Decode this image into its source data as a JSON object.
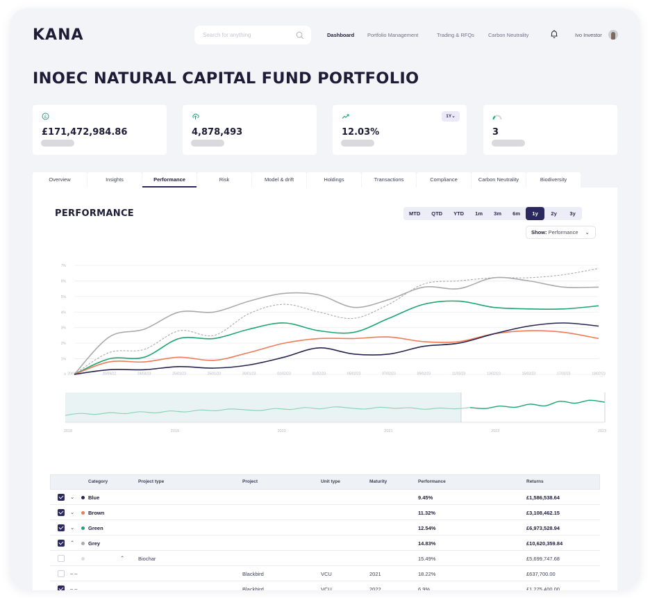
{
  "app": {
    "logo": "KANA"
  },
  "header": {
    "search_placeholder": "Search for anything",
    "nav": [
      "Dashboard",
      "Portfolio Management",
      "Trading & RFQs",
      "Carbon Neutrality"
    ],
    "active_nav": "Dashboard",
    "user_name": "Ivo Investor"
  },
  "page": {
    "title": "INOEC NATURAL CAPITAL FUND PORTFOLIO"
  },
  "kpis": [
    {
      "icon": "pound-circle-icon",
      "value": "£171,472,984.86"
    },
    {
      "icon": "cloud-upload-icon",
      "value": "4,878,493"
    },
    {
      "icon": "trend-up-icon",
      "value": "12.03%",
      "badge": "1Y"
    },
    {
      "icon": "gauge-icon",
      "value": "3"
    }
  ],
  "tabs": [
    "Overview",
    "Insights",
    "Performance",
    "Risk",
    "Model & drift",
    "Holdings",
    "Transactions",
    "Compliance",
    "Carbon Neutrality",
    "Biodiversity"
  ],
  "active_tab": "Performance",
  "performance": {
    "title": "PERFORMANCE",
    "ranges": [
      "MTD",
      "QTD",
      "YTD",
      "1m",
      "3m",
      "6m",
      "1y",
      "2y",
      "3y"
    ],
    "active_range": "1y",
    "show_label": "Show:",
    "show_value": "Performance"
  },
  "chart_data": {
    "type": "line",
    "ylim": [
      0,
      7
    ],
    "y_ticks": [
      "0",
      "1%",
      "2%",
      "3%",
      "4%",
      "5%",
      "6%",
      "7%"
    ],
    "x": [
      "20/01/23",
      "20/09/22",
      "24/03/23",
      "25/01/23",
      "25/01/23",
      "30/01/23",
      "01/02/23",
      "01/02/23",
      "05/02/23",
      "07/02/23",
      "09/02/23",
      "11/02/23",
      "13/02/23",
      "15/02/23",
      "17/02/23",
      "18/02/23"
    ],
    "series": [
      {
        "color": "#aaaaac",
        "dashed": false,
        "values": [
          0,
          2.4,
          2.9,
          4.0,
          4.0,
          4.7,
          5.2,
          5.1,
          4.3,
          4.8,
          5.6,
          5.5,
          6.2,
          6.0,
          5.6,
          5.6
        ]
      },
      {
        "color": "#aaaaac",
        "dashed": true,
        "values": [
          0,
          1.4,
          1.6,
          2.8,
          2.5,
          3.9,
          4.5,
          4.0,
          3.6,
          4.5,
          5.8,
          6.0,
          6.2,
          6.2,
          6.4,
          6.8
        ]
      },
      {
        "color": "#1aa571",
        "dashed": false,
        "values": [
          0,
          1.0,
          1.1,
          2.3,
          2.3,
          2.9,
          3.3,
          2.8,
          2.7,
          3.6,
          4.5,
          4.7,
          4.3,
          4.2,
          4.2,
          4.4
        ]
      },
      {
        "color": "#ee7a58",
        "dashed": false,
        "values": [
          0,
          0.8,
          0.8,
          1.1,
          0.9,
          1.4,
          2.0,
          2.3,
          2.3,
          2.4,
          2.1,
          2.1,
          2.6,
          2.8,
          2.7,
          2.3
        ]
      },
      {
        "color": "#25224f",
        "dashed": false,
        "values": [
          0,
          0.3,
          0.3,
          0.5,
          0.4,
          0.6,
          1.1,
          1.7,
          1.3,
          1.3,
          1.8,
          2.0,
          2.6,
          3.1,
          3.3,
          3.1
        ]
      }
    ],
    "navigator": {
      "x_labels": [
        "2018",
        "2019",
        "2020",
        "2021",
        "2022",
        "2023"
      ],
      "values": [
        0.2,
        0.28,
        0.24,
        0.31,
        0.27,
        0.35,
        0.3,
        0.38,
        0.34,
        0.42,
        0.39,
        0.46,
        0.43,
        0.4,
        0.48,
        0.44,
        0.52,
        0.47,
        0.55,
        0.5,
        0.46,
        0.53,
        0.49,
        0.51,
        0.45,
        0.5,
        0.47,
        0.52,
        0.48,
        0.58,
        0.53,
        0.66,
        0.59,
        0.78,
        0.7,
        0.82,
        0.74
      ]
    }
  },
  "table": {
    "columns": [
      "Category",
      "Project type",
      "Project",
      "Unit type",
      "Maturity",
      "Performance",
      "Returns"
    ],
    "rows": [
      {
        "checked": true,
        "expander": "⌄",
        "dot": "#25224f",
        "category": "Blue",
        "type": "",
        "project": "",
        "unit": "",
        "maturity": "",
        "performance": "9.45%",
        "returns": "£1,586,538.64",
        "bold": true
      },
      {
        "checked": true,
        "expander": "⌄",
        "dot": "#ee7a58",
        "category": "Brown",
        "type": "",
        "project": "",
        "unit": "",
        "maturity": "",
        "performance": "11.32%",
        "returns": "£3,108,462.15",
        "bold": true
      },
      {
        "checked": true,
        "expander": "⌄",
        "dot": "#1aa571",
        "category": "Green",
        "type": "",
        "project": "",
        "unit": "",
        "maturity": "",
        "performance": "12.54%",
        "returns": "£6,973,528.94",
        "bold": true
      },
      {
        "checked": true,
        "expander": "⌃",
        "dot": "#aaaaac",
        "category": "Grey",
        "type": "",
        "project": "",
        "unit": "",
        "maturity": "",
        "performance": "14.83%",
        "returns": "£10,620,359.84",
        "bold": true
      },
      {
        "checked": false,
        "expander": "",
        "dot": "#dcdce0",
        "category": "",
        "type": "Biochar",
        "type_expander": "⌃",
        "project": "",
        "unit": "",
        "maturity": "",
        "performance": "15.49%",
        "returns": "£5,699,747.68",
        "bold": false
      },
      {
        "checked": false,
        "expander": "– –",
        "dot": "",
        "category": "",
        "type": "",
        "project": "Blackbird",
        "unit": "VCU",
        "maturity": "2021",
        "performance": "18.22%",
        "returns": "£637,700.00",
        "bold": false
      },
      {
        "checked": true,
        "expander": "– –",
        "dot": "",
        "category": "",
        "type": "",
        "project": "Blackbird",
        "unit": "VCU",
        "maturity": "2022",
        "performance": "6.9%",
        "returns": "£1,275,400.00",
        "bold": false
      }
    ]
  }
}
